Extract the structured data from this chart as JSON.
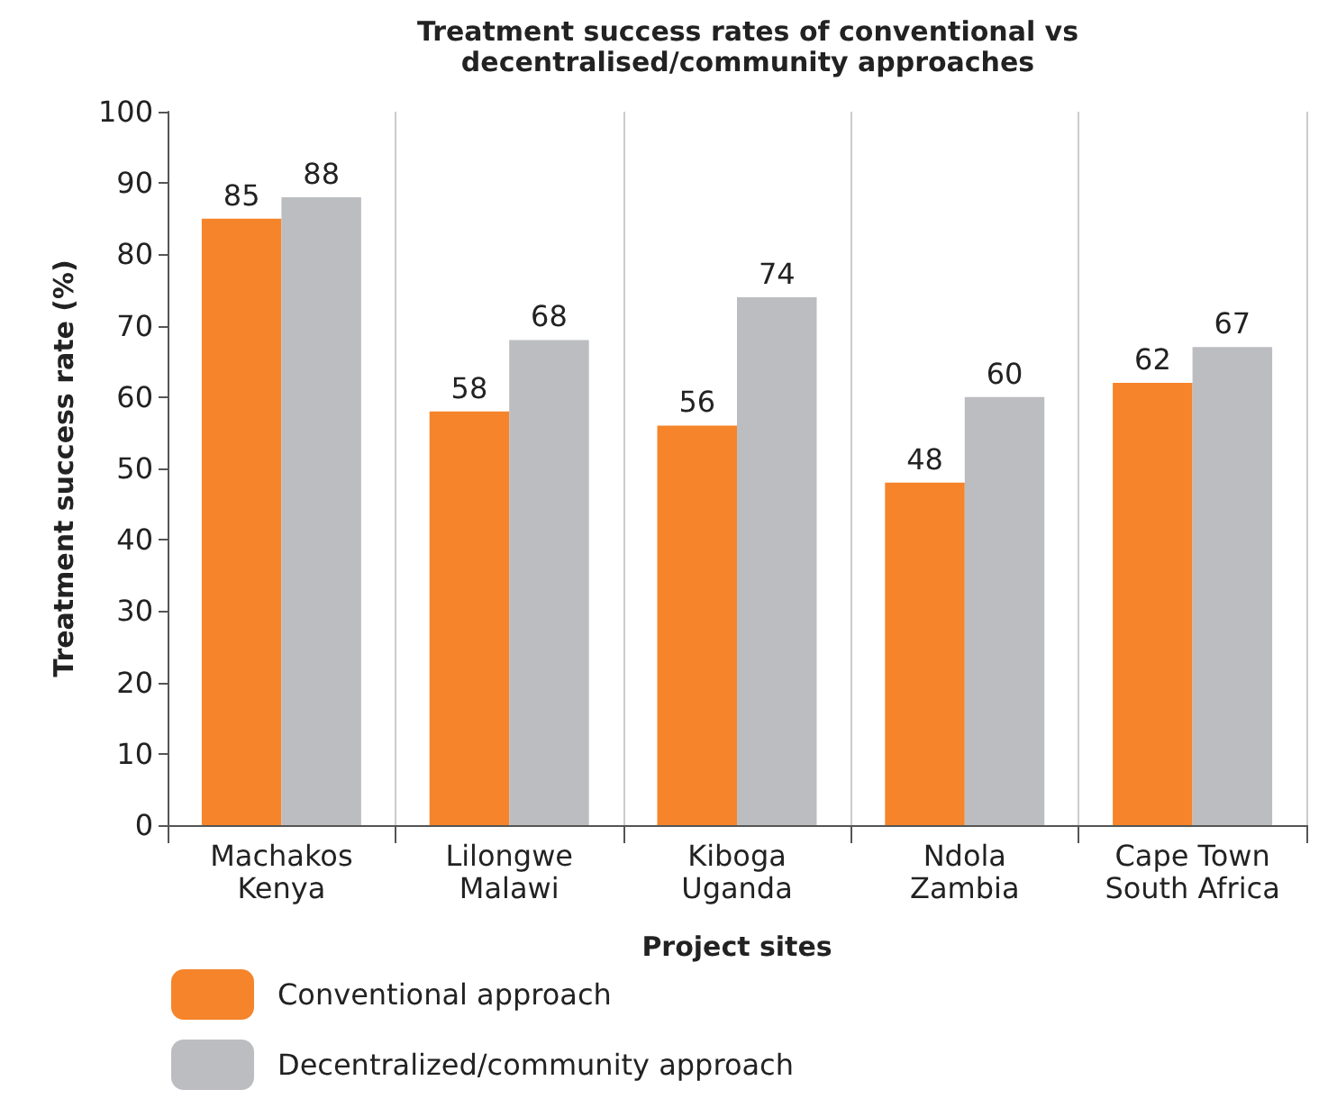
{
  "chart_data": {
    "type": "bar",
    "title": "Treatment success rates of conventional vs\ndecentralised/community approaches",
    "xlabel": "Project sites",
    "ylabel": "Treatment success rate (%)",
    "categories": [
      "Machakos\nKenya",
      "Lilongwe\nMalawi",
      "Kiboga\nUganda",
      "Ndola\nZambia",
      "Cape Town\nSouth Africa"
    ],
    "series": [
      {
        "name": "Conventional approach",
        "color": "#f5842a",
        "values": [
          85,
          58,
          56,
          48,
          62
        ]
      },
      {
        "name": "Decentralized/community approach",
        "color": "#bcbdc0",
        "values": [
          88,
          68,
          74,
          60,
          67
        ]
      }
    ],
    "ylim": [
      0,
      100
    ],
    "yticks": [
      0,
      10,
      20,
      30,
      40,
      50,
      60,
      70,
      80,
      90,
      100
    ],
    "grid": "x",
    "legend": "bottom left",
    "data_labels": true
  }
}
